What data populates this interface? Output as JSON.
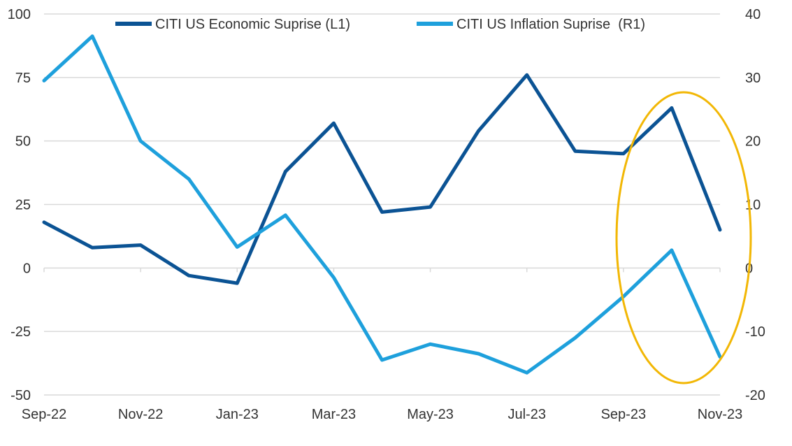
{
  "chart_data": {
    "type": "line",
    "x": [
      "Sep-22",
      "Oct-22",
      "Nov-22",
      "Dec-22",
      "Jan-23",
      "Feb-23",
      "Mar-23",
      "Apr-23",
      "May-23",
      "Jun-23",
      "Jul-23",
      "Aug-23",
      "Sep-23",
      "Oct-23",
      "Nov-23"
    ],
    "x_tick_labels": [
      "Sep-22",
      "Nov-22",
      "Jan-23",
      "Mar-23",
      "May-23",
      "Jul-23",
      "Sep-23",
      "Nov-23"
    ],
    "y_left": {
      "lim": [
        -50,
        100
      ],
      "ticks": [
        "100",
        "75",
        "50",
        "25",
        "0",
        "-25",
        "-50"
      ],
      "values": [
        100,
        75,
        50,
        25,
        0,
        -25,
        -50
      ]
    },
    "y_right": {
      "lim": [
        -20,
        40
      ],
      "ticks": [
        "40",
        "30",
        "20",
        "10",
        "0",
        "-10",
        "-20"
      ],
      "values": [
        40,
        30,
        20,
        10,
        0,
        -10,
        -20
      ]
    },
    "series": [
      {
        "name": "CITI US Economic Suprise (L1)",
        "axis": "left",
        "color": "#0b5394",
        "values": [
          18,
          8,
          9,
          -3,
          -6,
          38,
          57,
          22,
          24,
          54,
          76,
          46,
          45,
          63,
          15
        ]
      },
      {
        "name": "CITI US Inflation Suprise  (R1)",
        "axis": "right",
        "color": "#1ea0dc",
        "values": [
          29.5,
          36.5,
          20,
          14,
          3.3,
          8.3,
          -1.5,
          -14.5,
          -12,
          -13.5,
          -16.5,
          -11,
          -4.5,
          2.8,
          -14
        ]
      }
    ],
    "annotation": {
      "type": "ellipse",
      "color": "#f2b705",
      "highlight": [
        "Sep-23",
        "Nov-23"
      ]
    },
    "grid": true,
    "legend_position": "top"
  }
}
